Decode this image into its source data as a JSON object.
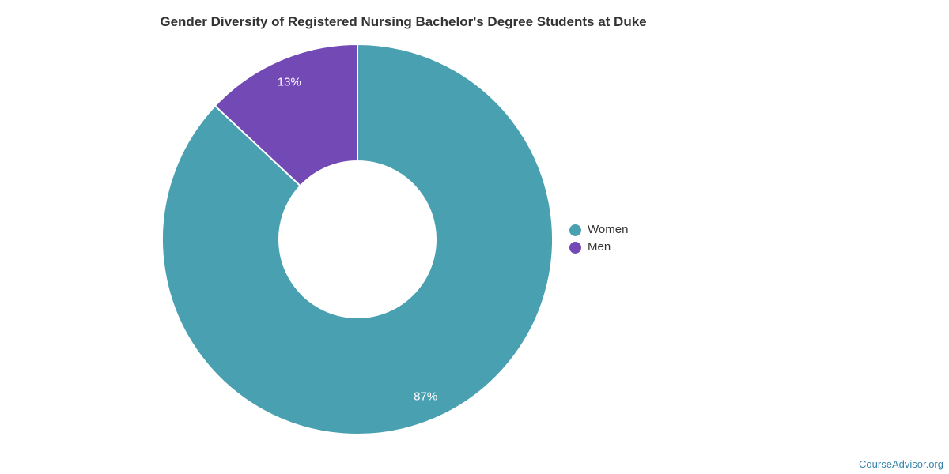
{
  "title": "Gender Diversity of Registered Nursing Bachelor's Degree Students at Duke",
  "credits": "CourseAdvisor.org",
  "colors": {
    "background": "#ffffff",
    "title_text": "#333333",
    "legend_text": "#333333",
    "slice_label_text": "#ffffff",
    "slice_border": "#ffffff",
    "credits_text": "#3584ad",
    "women": "#49a0b1",
    "men": "#7249b5"
  },
  "chart_data": {
    "type": "pie",
    "subtype": "donut",
    "title": "Gender Diversity of Registered Nursing Bachelor's Degree Students at Duke",
    "units": "percent",
    "start_angle_deg": 0,
    "direction": "clockwise",
    "inner_radius_ratio": 0.4,
    "grid": false,
    "legend_position": "right",
    "series": [
      {
        "name": "Women",
        "value": 87,
        "label": "87%",
        "color": "#49a0b1"
      },
      {
        "name": "Men",
        "value": 13,
        "label": "13%",
        "color": "#7249b5"
      }
    ]
  }
}
